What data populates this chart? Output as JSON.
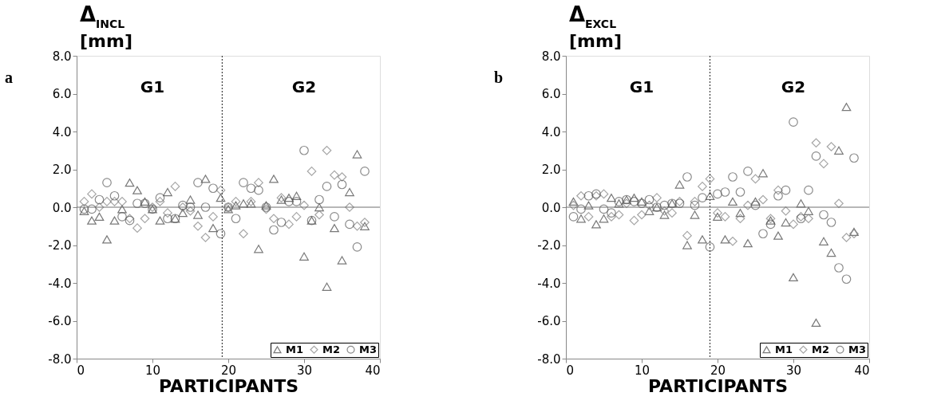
{
  "chart_data": [
    {
      "type": "scatter",
      "ylabel": "Δ$_{INCL}$ [mm]",
      "xlabel": "PARTICIPANTS",
      "annotations": [
        "a",
        "G1",
        "G2"
      ],
      "x": [
        1,
        2,
        3,
        4,
        5,
        6,
        7,
        8,
        9,
        10,
        11,
        12,
        13,
        14,
        15,
        16,
        17,
        18,
        19,
        20,
        21,
        22,
        23,
        24,
        25,
        26,
        27,
        28,
        29,
        30,
        31,
        32,
        33,
        34,
        35,
        36,
        37,
        38
      ],
      "series": [
        {
          "name": "M1",
          "color": "#404040",
          "marker": "triangle",
          "values": [
            -0.2,
            -0.7,
            -0.5,
            -1.7,
            -0.7,
            -0.1,
            1.3,
            0.9,
            0.3,
            -0.1,
            -0.7,
            0.8,
            -0.6,
            -0.3,
            0.4,
            -0.4,
            1.5,
            -1.1,
            0.5,
            -0.1,
            0.1,
            0.2,
            0.2,
            -2.2,
            0.1,
            1.5,
            0.4,
            0.5,
            0.6,
            -2.6,
            -0.7,
            0.0,
            -4.2,
            -1.1,
            -2.8,
            0.8,
            2.8,
            -1.0
          ]
        },
        {
          "name": "M2",
          "color": "#808080",
          "marker": "diamond",
          "values": [
            0.3,
            0.7,
            0.0,
            0.3,
            0.3,
            0.3,
            -0.6,
            -1.1,
            -0.6,
            0.0,
            0.3,
            -0.3,
            1.1,
            0.0,
            -0.2,
            -1.0,
            -1.6,
            -0.5,
            0.9,
            0.0,
            0.3,
            -1.4,
            0.3,
            1.3,
            -0.1,
            -0.6,
            0.5,
            -0.9,
            -0.5,
            0.1,
            1.9,
            -0.4,
            3.0,
            1.7,
            1.6,
            0.0,
            -1.0,
            -0.8
          ]
        },
        {
          "name": "M3",
          "color": "#595959",
          "marker": "circle",
          "values": [
            -0.1,
            -0.1,
            0.4,
            1.3,
            0.6,
            -0.5,
            -0.7,
            0.2,
            0.2,
            -0.1,
            0.5,
            -0.6,
            -0.6,
            0.1,
            0.0,
            1.3,
            0.0,
            1.0,
            -1.4,
            0.0,
            -0.6,
            1.3,
            1.0,
            0.9,
            0.0,
            -1.2,
            -0.8,
            0.3,
            0.3,
            3.0,
            -0.7,
            0.4,
            1.1,
            -0.5,
            1.2,
            -0.9,
            -2.1,
            1.9
          ]
        }
      ],
      "xlim": [
        0,
        40
      ],
      "xticks": [
        0,
        10,
        20,
        30,
        40
      ],
      "ylim": [
        -8,
        8
      ],
      "yticks": [
        {
          "value": -8,
          "label": "-8.0"
        },
        {
          "value": -6,
          "label": "-6.0"
        },
        {
          "value": -4,
          "label": "-4.0"
        },
        {
          "value": -2,
          "label": "-2.0"
        },
        {
          "value": 0,
          "label": "0.0"
        },
        {
          "value": 2,
          "label": "2.0"
        },
        {
          "value": 4,
          "label": "4.0"
        },
        {
          "value": 6,
          "label": "6.0"
        },
        {
          "value": 8,
          "label": "8.0"
        }
      ],
      "ref_lines": [
        {
          "axis": "x",
          "value": 19.2,
          "color": "#404040",
          "line_style": "dotted"
        },
        {
          "axis": "y",
          "value": 0,
          "color": "#707070",
          "line_style": "solid"
        }
      ],
      "grid": false,
      "legend": "bottom right"
    },
    {
      "type": "scatter",
      "ylabel": "Δ$_{EXCL}$ [mm]",
      "xlabel": "PARTICIPANTS",
      "annotations": [
        "b",
        "G1",
        "G2"
      ],
      "x": [
        1,
        2,
        3,
        4,
        5,
        6,
        7,
        8,
        9,
        10,
        11,
        12,
        13,
        14,
        15,
        16,
        17,
        18,
        19,
        20,
        21,
        22,
        23,
        24,
        25,
        26,
        27,
        28,
        29,
        30,
        31,
        32,
        33,
        34,
        35,
        36,
        37,
        38
      ],
      "series": [
        {
          "name": "M1",
          "color": "#404040",
          "marker": "triangle",
          "values": [
            0.3,
            -0.6,
            0.1,
            -0.9,
            -0.6,
            0.5,
            0.2,
            0.4,
            0.5,
            0.3,
            -0.2,
            0.0,
            -0.4,
            0.2,
            1.2,
            -2.0,
            -0.4,
            -1.7,
            0.6,
            -0.5,
            -1.7,
            0.3,
            -0.3,
            -1.9,
            0.3,
            1.8,
            -0.7,
            -1.5,
            -0.8,
            -3.7,
            0.2,
            -0.2,
            -6.1,
            -1.8,
            -2.4,
            3.0,
            5.3,
            -1.3
          ]
        },
        {
          "name": "M2",
          "color": "#808080",
          "marker": "diamond",
          "values": [
            0.1,
            0.6,
            -0.5,
            0.6,
            0.7,
            -0.5,
            -0.4,
            0.2,
            -0.7,
            -0.4,
            0.1,
            0.5,
            -0.2,
            -0.3,
            0.3,
            -1.5,
            0.3,
            1.1,
            1.5,
            -0.3,
            -0.5,
            -1.8,
            -0.6,
            0.1,
            1.5,
            0.4,
            -0.6,
            0.9,
            -0.2,
            -0.9,
            -0.5,
            -0.6,
            3.4,
            2.3,
            3.2,
            0.2,
            -1.6,
            -1.4
          ]
        },
        {
          "name": "M3",
          "color": "#595959",
          "marker": "circle",
          "values": [
            -0.5,
            -0.1,
            0.6,
            0.7,
            -0.1,
            -0.3,
            0.3,
            0.4,
            0.3,
            0.2,
            0.4,
            0.0,
            0.1,
            0.2,
            0.2,
            1.6,
            0.1,
            0.5,
            -2.1,
            0.7,
            0.8,
            1.6,
            0.8,
            1.9,
            0.1,
            -1.4,
            -0.9,
            0.6,
            0.9,
            4.5,
            -0.6,
            0.9,
            2.7,
            -0.4,
            -0.8,
            -3.2,
            -3.8,
            2.6
          ]
        }
      ],
      "xlim": [
        0,
        40
      ],
      "xticks": [
        0,
        10,
        20,
        30,
        40
      ],
      "ylim": [
        -8,
        8
      ],
      "yticks": [
        {
          "value": -8,
          "label": "-8.0"
        },
        {
          "value": -6,
          "label": "-6.0"
        },
        {
          "value": -4,
          "label": "-4.0"
        },
        {
          "value": -2,
          "label": "-2.0"
        },
        {
          "value": 0,
          "label": "0.0"
        },
        {
          "value": 2,
          "label": "2.0"
        },
        {
          "value": 4,
          "label": "4.0"
        },
        {
          "value": 6,
          "label": "6.0"
        },
        {
          "value": 8,
          "label": "8.0"
        }
      ],
      "ref_lines": [
        {
          "axis": "x",
          "value": 19.0,
          "color": "#404040",
          "line_style": "dotted"
        },
        {
          "axis": "y",
          "value": 0,
          "color": "#707070",
          "line_style": "solid"
        }
      ],
      "grid": false,
      "legend": "bottom right"
    }
  ]
}
